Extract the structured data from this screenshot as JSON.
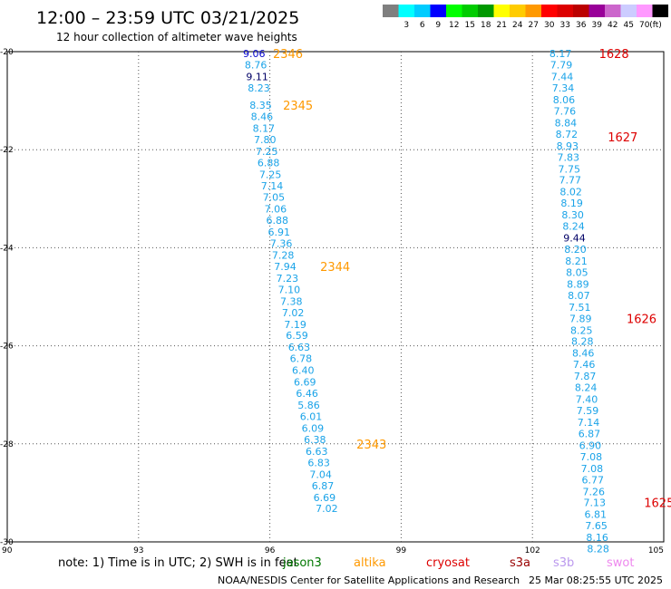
{
  "title": "12:00 – 23:59 UTC 03/21/2025",
  "subtitle": "12 hour collection of altimeter wave heights",
  "colorbar": {
    "unit": "(ft)",
    "bins": [
      {
        "label": "",
        "color": "#7f7f7f"
      },
      {
        "label": "3",
        "color": "#00ffff"
      },
      {
        "label": "6",
        "color": "#00ccff"
      },
      {
        "label": "9",
        "color": "#0000ff"
      },
      {
        "label": "12",
        "color": "#00ff00"
      },
      {
        "label": "15",
        "color": "#00cc00"
      },
      {
        "label": "18",
        "color": "#009900"
      },
      {
        "label": "21",
        "color": "#ffff00"
      },
      {
        "label": "24",
        "color": "#ffcc00"
      },
      {
        "label": "27",
        "color": "#ff9900"
      },
      {
        "label": "30",
        "color": "#ff0000"
      },
      {
        "label": "33",
        "color": "#dd0000"
      },
      {
        "label": "36",
        "color": "#bb0000"
      },
      {
        "label": "39",
        "color": "#990099"
      },
      {
        "label": "42",
        "color": "#cc66cc"
      },
      {
        "label": "45",
        "color": "#ccccff"
      },
      {
        "label": "70",
        "color": "#ff99ff"
      },
      {
        "label": "",
        "color": "#000000"
      }
    ]
  },
  "note": "note:  1) Time is in UTC; 2) SWH is in feet",
  "satellites": [
    {
      "name": "jason3",
      "color": "#007700"
    },
    {
      "name": "altika",
      "color": "#ff9900"
    },
    {
      "name": "cryosat",
      "color": "#dd0000"
    },
    {
      "name": "s3a",
      "color": "#990000"
    },
    {
      "name": "s3b",
      "color": "#bb99ee"
    },
    {
      "name": "swot",
      "color": "#ee88ee"
    }
  ],
  "footer": {
    "left": "NOAA/NESDIS Center for Satellite Applications and Research",
    "right": "25 Mar 08:25:55 UTC 2025"
  },
  "chart_data": {
    "type": "scatter",
    "xlim": [
      90,
      105
    ],
    "ylim": [
      -30,
      -20
    ],
    "xticks": [
      90,
      93,
      96,
      99,
      102,
      105
    ],
    "yticks": [
      -20,
      -22,
      -24,
      -26,
      -28,
      -30
    ],
    "xtick_labels": [
      "90",
      "93",
      "96",
      "99",
      "102",
      "105"
    ],
    "ytick_labels": [
      "-20",
      "-22",
      "-24",
      "-26",
      "-28",
      "-30"
    ],
    "grid": true,
    "series": [
      {
        "name": "altika",
        "color": "#1aa3e8",
        "points": [
          {
            "x": 95.64,
            "y": -20.04,
            "label": "9.06",
            "color": "#0000cc"
          },
          {
            "x": 95.68,
            "y": -20.27,
            "label": "8.76"
          },
          {
            "x": 95.71,
            "y": -20.51,
            "label": "9.11",
            "color": "#000066"
          },
          {
            "x": 95.75,
            "y": -20.74,
            "label": "8.23"
          },
          {
            "x": 95.79,
            "y": -21.09,
            "label": "8.35"
          },
          {
            "x": 95.82,
            "y": -21.32,
            "label": "8.46"
          },
          {
            "x": 95.86,
            "y": -21.56,
            "label": "8.17"
          },
          {
            "x": 95.89,
            "y": -21.79,
            "label": "7.80"
          },
          {
            "x": 95.93,
            "y": -22.03,
            "label": "7.25"
          },
          {
            "x": 95.97,
            "y": -22.26,
            "label": "6.88"
          },
          {
            "x": 96.01,
            "y": -22.5,
            "label": "7.25"
          },
          {
            "x": 96.05,
            "y": -22.74,
            "label": "7.14"
          },
          {
            "x": 96.09,
            "y": -22.97,
            "label": "7.05"
          },
          {
            "x": 96.13,
            "y": -23.21,
            "label": "7.06"
          },
          {
            "x": 96.17,
            "y": -23.44,
            "label": "6.88"
          },
          {
            "x": 96.21,
            "y": -23.68,
            "label": "6.91"
          },
          {
            "x": 96.26,
            "y": -23.91,
            "label": "7.36"
          },
          {
            "x": 96.3,
            "y": -24.15,
            "label": "7.28"
          },
          {
            "x": 96.35,
            "y": -24.38,
            "label": "7.94"
          },
          {
            "x": 96.4,
            "y": -24.62,
            "label": "7.23"
          },
          {
            "x": 96.44,
            "y": -24.85,
            "label": "7.10"
          },
          {
            "x": 96.49,
            "y": -25.09,
            "label": "7.38"
          },
          {
            "x": 96.53,
            "y": -25.32,
            "label": "7.02"
          },
          {
            "x": 96.58,
            "y": -25.56,
            "label": "7.19"
          },
          {
            "x": 96.62,
            "y": -25.79,
            "label": "6.59"
          },
          {
            "x": 96.67,
            "y": -26.03,
            "label": "6.63"
          },
          {
            "x": 96.71,
            "y": -26.26,
            "label": "6.78"
          },
          {
            "x": 96.76,
            "y": -26.5,
            "label": "6.40"
          },
          {
            "x": 96.8,
            "y": -26.74,
            "label": "6.69"
          },
          {
            "x": 96.85,
            "y": -26.97,
            "label": "6.46"
          },
          {
            "x": 96.89,
            "y": -27.21,
            "label": "5.86"
          },
          {
            "x": 96.94,
            "y": -27.44,
            "label": "6.01"
          },
          {
            "x": 96.98,
            "y": -27.68,
            "label": "6.09"
          },
          {
            "x": 97.03,
            "y": -27.91,
            "label": "6.38"
          },
          {
            "x": 97.07,
            "y": -28.15,
            "label": "6.63"
          },
          {
            "x": 97.12,
            "y": -28.38,
            "label": "6.83"
          },
          {
            "x": 97.16,
            "y": -28.62,
            "label": "7.04"
          },
          {
            "x": 97.21,
            "y": -28.85,
            "label": "6.87"
          },
          {
            "x": 97.25,
            "y": -29.09,
            "label": "6.69"
          },
          {
            "x": 97.3,
            "y": -29.32,
            "label": "7.02"
          }
        ]
      },
      {
        "name": "cryosat",
        "color": "#1aa3e8",
        "points": [
          {
            "x": 102.64,
            "y": -20.04,
            "label": "8.17"
          },
          {
            "x": 102.66,
            "y": -20.27,
            "label": "7.79"
          },
          {
            "x": 102.68,
            "y": -20.51,
            "label": "7.44"
          },
          {
            "x": 102.7,
            "y": -20.74,
            "label": "7.34"
          },
          {
            "x": 102.72,
            "y": -20.98,
            "label": "8.06"
          },
          {
            "x": 102.74,
            "y": -21.21,
            "label": "7.76"
          },
          {
            "x": 102.76,
            "y": -21.45,
            "label": "8.84"
          },
          {
            "x": 102.78,
            "y": -21.68,
            "label": "8.72"
          },
          {
            "x": 102.8,
            "y": -21.92,
            "label": "8.93"
          },
          {
            "x": 102.82,
            "y": -22.15,
            "label": "7.83"
          },
          {
            "x": 102.84,
            "y": -22.39,
            "label": "7.75"
          },
          {
            "x": 102.86,
            "y": -22.62,
            "label": "7.77"
          },
          {
            "x": 102.88,
            "y": -22.86,
            "label": "8.02"
          },
          {
            "x": 102.9,
            "y": -23.09,
            "label": "8.19"
          },
          {
            "x": 102.92,
            "y": -23.33,
            "label": "8.30"
          },
          {
            "x": 102.94,
            "y": -23.56,
            "label": "8.24"
          },
          {
            "x": 102.96,
            "y": -23.8,
            "label": "9.44",
            "color": "#000066"
          },
          {
            "x": 102.98,
            "y": -24.03,
            "label": "8.20"
          },
          {
            "x": 103.0,
            "y": -24.27,
            "label": "8.21"
          },
          {
            "x": 103.02,
            "y": -24.5,
            "label": "8.05"
          },
          {
            "x": 103.04,
            "y": -24.74,
            "label": "8.89"
          },
          {
            "x": 103.06,
            "y": -24.97,
            "label": "8.07"
          },
          {
            "x": 103.08,
            "y": -25.21,
            "label": "7.51"
          },
          {
            "x": 103.1,
            "y": -25.44,
            "label": "7.89"
          },
          {
            "x": 103.12,
            "y": -25.68,
            "label": "8.25"
          },
          {
            "x": 103.14,
            "y": -25.91,
            "label": "8.28"
          },
          {
            "x": 103.16,
            "y": -26.15,
            "label": "8.46"
          },
          {
            "x": 103.18,
            "y": -26.38,
            "label": "7.46"
          },
          {
            "x": 103.2,
            "y": -26.62,
            "label": "7.87"
          },
          {
            "x": 103.22,
            "y": -26.85,
            "label": "8.24"
          },
          {
            "x": 103.24,
            "y": -27.09,
            "label": "7.40"
          },
          {
            "x": 103.26,
            "y": -27.32,
            "label": "7.59"
          },
          {
            "x": 103.28,
            "y": -27.56,
            "label": "7.14"
          },
          {
            "x": 103.3,
            "y": -27.79,
            "label": "6.87"
          },
          {
            "x": 103.32,
            "y": -28.03,
            "label": "6.90"
          },
          {
            "x": 103.34,
            "y": -28.26,
            "label": "7.08"
          },
          {
            "x": 103.36,
            "y": -28.5,
            "label": "7.08"
          },
          {
            "x": 103.38,
            "y": -28.73,
            "label": "6.77"
          },
          {
            "x": 103.4,
            "y": -28.97,
            "label": "7.26"
          },
          {
            "x": 103.42,
            "y": -29.2,
            "label": "7.13"
          },
          {
            "x": 103.44,
            "y": -29.44,
            "label": "6.81"
          },
          {
            "x": 103.46,
            "y": -29.67,
            "label": "7.65"
          },
          {
            "x": 103.48,
            "y": -29.91,
            "label": "8.16"
          },
          {
            "x": 103.5,
            "y": -30.14,
            "label": "8.28"
          }
        ]
      }
    ],
    "annotations": [
      {
        "x": 96.07,
        "y": -20.04,
        "text": "2346",
        "color": "#ff9900"
      },
      {
        "x": 96.3,
        "y": -21.09,
        "text": "2345",
        "color": "#ff9900"
      },
      {
        "x": 97.15,
        "y": -24.38,
        "text": "2344",
        "color": "#ff9900"
      },
      {
        "x": 97.98,
        "y": -28.0,
        "text": "2343",
        "color": "#ff9900"
      },
      {
        "x": 103.52,
        "y": -20.04,
        "text": "1628",
        "color": "#dd0000"
      },
      {
        "x": 103.72,
        "y": -21.74,
        "text": "1627",
        "color": "#dd0000"
      },
      {
        "x": 104.15,
        "y": -25.44,
        "text": "1626",
        "color": "#dd0000"
      },
      {
        "x": 104.55,
        "y": -29.2,
        "text": "1625",
        "color": "#dd0000"
      }
    ]
  }
}
